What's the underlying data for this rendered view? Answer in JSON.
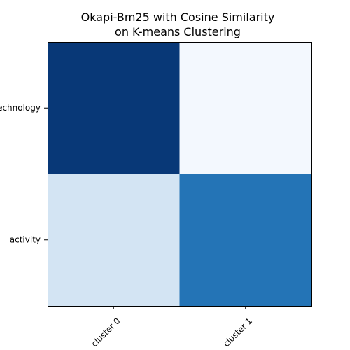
{
  "chart_data": {
    "type": "heatmap",
    "title_lines": [
      "Okapi-Bm25 with Cosine Similarity",
      "on K-means Clustering"
    ],
    "x_categories": [
      "cluster 0",
      "cluster 1"
    ],
    "y_categories": [
      "technology",
      "activity"
    ],
    "values": [
      [
        0.97,
        0.02
      ],
      [
        0.18,
        0.74
      ]
    ],
    "colormap": "Blues",
    "colormap_stops": [
      "#f7fbff",
      "#deebf7",
      "#c6dbef",
      "#9ecae1",
      "#6baed6",
      "#4292c6",
      "#2171b5",
      "#08519c",
      "#08306b"
    ],
    "xlabel": "",
    "ylabel": "",
    "xtick_rotation": 45
  }
}
